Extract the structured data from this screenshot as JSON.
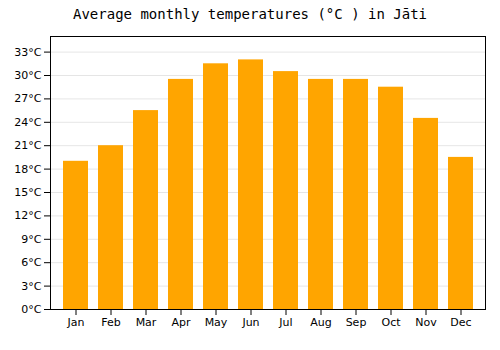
{
  "chart_data": {
    "type": "bar",
    "title": "Average monthly temperatures (°C ) in Jāti",
    "categories": [
      "Jan",
      "Feb",
      "Mar",
      "Apr",
      "May",
      "Jun",
      "Jul",
      "Aug",
      "Sep",
      "Oct",
      "Nov",
      "Dec"
    ],
    "values": [
      19.0,
      21.0,
      25.5,
      29.5,
      31.5,
      32.0,
      30.5,
      29.5,
      29.5,
      28.5,
      24.5,
      19.5
    ],
    "color": "#FFA500",
    "ylim": [
      0,
      35
    ],
    "yticks": [
      {
        "value": 0,
        "label": "0°C"
      },
      {
        "value": 3,
        "label": "3°C"
      },
      {
        "value": 6,
        "label": "6°C"
      },
      {
        "value": 9,
        "label": "9°C"
      },
      {
        "value": 12,
        "label": "12°C"
      },
      {
        "value": 15,
        "label": "15°C"
      },
      {
        "value": 18,
        "label": "18°C"
      },
      {
        "value": 21,
        "label": "21°C"
      },
      {
        "value": 24,
        "label": "24°C"
      },
      {
        "value": 27,
        "label": "27°C"
      },
      {
        "value": 30,
        "label": "30°C"
      },
      {
        "value": 33,
        "label": "33°C"
      }
    ],
    "grid": true
  }
}
